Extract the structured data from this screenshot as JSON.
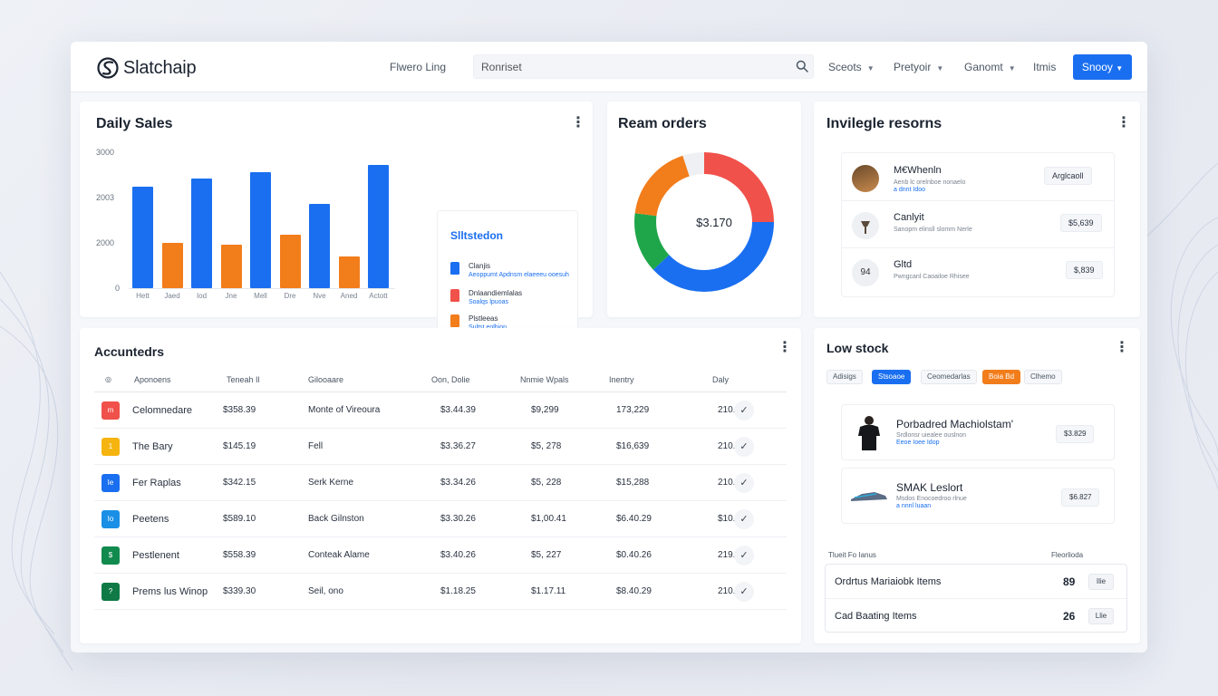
{
  "header": {
    "app_name": "Slatchaip",
    "nav_link": "Flwero Ling",
    "search_value": "Ronriset",
    "dropdowns": [
      "Sceots",
      "Pretyoir",
      "Ganomt"
    ],
    "items_link": "Itmis",
    "primary_button": "Snooy"
  },
  "daily_sales": {
    "title": "Daily Sales",
    "legend": {
      "title": "Slltstedon",
      "items": [
        {
          "name": "Clanjis",
          "sub": "Aeoppumt Apdnsm elaeeeu ooesuh"
        },
        {
          "name": "Dnlaandiemlalas",
          "sub": "Soalqs lpuoas"
        },
        {
          "name": "Plstleeas",
          "sub": "Sultst eolhion"
        }
      ]
    }
  },
  "chart_data": {
    "type": "bar",
    "categories": [
      "Hett",
      "Jaed",
      "Iod",
      "Jne",
      "Mell",
      "Dre",
      "Nve",
      "Aned",
      "Actott"
    ],
    "yticks": [
      "0",
      "2000",
      "2003",
      "3000"
    ],
    "ylim": [
      0,
      3000
    ],
    "values": [
      2250,
      1000,
      2420,
      960,
      2560,
      1180,
      1860,
      700,
      2730
    ],
    "colors": [
      "#1a6ff0",
      "#f27d1b",
      "#1a6ff0",
      "#f27d1b",
      "#1a6ff0",
      "#f27d1b",
      "#1a6ff0",
      "#f27d1b",
      "#1a6ff0"
    ],
    "title": "Daily Sales",
    "xlabel": "",
    "ylabel": "",
    "grid": false
  },
  "ream_orders": {
    "title": "Ream orders",
    "center_value": "$3.170",
    "segments": [
      {
        "color": "#f0514a",
        "value": 25
      },
      {
        "color": "#1a6ff0",
        "value": 38
      },
      {
        "color": "#1fa64a",
        "value": 14
      },
      {
        "color": "#f27d1b",
        "value": 18
      },
      {
        "color": "#eef0f3",
        "value": 5
      }
    ]
  },
  "resources": {
    "title": "Invilegle resorns",
    "items": [
      {
        "name": "M€Whenln",
        "sub": "Aenb lc orelnboe nonaelo",
        "sub2": "a dnnt Idoo",
        "pill": "Arglcaoll",
        "avatar": ""
      },
      {
        "name": "Canlyit",
        "sub": "Sanopm elinsll slomm Nerle",
        "sub2": "",
        "pill": "$5,639",
        "avatar": ""
      },
      {
        "name": "Gltd",
        "sub": "Pwngcanl Caoailoe Rhisee",
        "sub2": "",
        "pill": "$,839",
        "avatar": "94"
      }
    ]
  },
  "accounts": {
    "title": "Accuntedrs",
    "headers": [
      "Aponoens",
      "Teneah Il",
      "Gilooaare",
      "Oon, Dolie",
      "Nnmie Wpals",
      "Inentry",
      "Daly"
    ],
    "rows": [
      {
        "badge": "m",
        "badge_color": "#f0514a",
        "name": "Celomnedare",
        "c1": "$358.39",
        "c2": "Monte of Vireoura",
        "c3": "$3.44.39",
        "c4": "$9,299",
        "c5": "173,229",
        "c6": "210.00"
      },
      {
        "badge": "1",
        "badge_color": "#f5b40f",
        "name": "The Bary",
        "c1": "$145.19",
        "c2": "Fell",
        "c3": "$3.36.27",
        "c4": "$5, 278",
        "c5": "$16,639",
        "c6": "210.00"
      },
      {
        "badge": "Ie",
        "badge_color": "#1a6ff0",
        "name": "Fer Raplas",
        "c1": "$342.15",
        "c2": "Serk Kerne",
        "c3": "$3.34.26",
        "c4": "$5, 228",
        "c5": "$15,288",
        "c6": "210.00"
      },
      {
        "badge": "Io",
        "badge_color": "#1a8fe6",
        "name": "Peetens",
        "c1": "$589.10",
        "c2": "Back Gilnston",
        "c3": "$3.30.26",
        "c4": "$1,00.41",
        "c5": "$6.40.29",
        "c6": "$10.00"
      },
      {
        "badge": "$",
        "badge_color": "#118a4e",
        "name": "Pestlenent",
        "c1": "$558.39",
        "c2": "Conteak Alame",
        "c3": "$3.40.26",
        "c4": "$5, 227",
        "c5": "$0.40.26",
        "c6": "219.00"
      },
      {
        "badge": "?",
        "badge_color": "#0f7a45",
        "name": "Prems lus Winop",
        "c1": "$339.30",
        "c2": "Seil, ono",
        "c3": "$1.18.25",
        "c4": "$1.17.11",
        "c5": "$8.40.29",
        "c6": "210.40"
      }
    ]
  },
  "low_stock": {
    "title": "Low stock",
    "chips": [
      {
        "label": "Adisigs",
        "style": "plain"
      },
      {
        "label": "Stsoaoe",
        "style": "blue"
      },
      {
        "label": "Ceomedarlas",
        "style": "plain"
      },
      {
        "label": "Boia Bd",
        "style": "orange"
      },
      {
        "label": "Clhemo",
        "style": "plain"
      }
    ],
    "items": [
      {
        "name": "Porbadred Machiolstam'",
        "sub": "Srdlonsr uiealee ouslnon",
        "sub2": "Eeoe Ioee Idop",
        "pill": "$3.829"
      },
      {
        "name": "SMAK Leslort",
        "sub": "Msdos Enocoedroo rlnue",
        "sub2": "a nnnl luaan",
        "pill": "$6.827"
      }
    ],
    "summary_head_left": "Tlueit Fo Ianus",
    "summary_head_right": "Fleorlioda",
    "summary": [
      {
        "label": "Ordrtus Mariaiobk Items",
        "value": "89",
        "button": "Ilie"
      },
      {
        "label": "Cad Baating Items",
        "value": "26",
        "button": "Llie"
      }
    ]
  }
}
